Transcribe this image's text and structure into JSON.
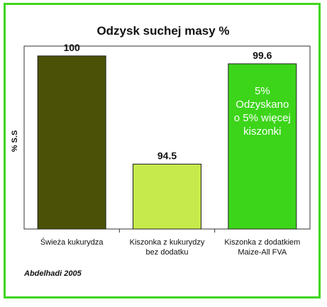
{
  "chart_data": {
    "type": "bar",
    "title": "Odzysk suchej masy %",
    "ylabel": "% S.S",
    "xlabel": "",
    "categories": [
      [
        "Świeża kukurydza"
      ],
      [
        "Kiszonka z kukurydzy",
        "bez dodatku"
      ],
      [
        "Kiszonka z dodatkiem",
        "Maize-All FVA"
      ]
    ],
    "values": [
      100,
      94.5,
      99.6
    ],
    "value_labels": [
      "100",
      "94.5",
      "99.6"
    ],
    "colors": [
      "#4b5208",
      "#c6ea4c",
      "#3cd51a"
    ],
    "ylim": [
      91.2,
      100.5
    ],
    "grid": false,
    "legend": "none",
    "annotation": {
      "bar_index": 2,
      "lines": [
        "5%",
        "Odzyskano",
        "o 5% więcej",
        "kiszonki"
      ]
    }
  },
  "source_note": "Abdelhadi 2005",
  "frame_color": "#3fd61c"
}
